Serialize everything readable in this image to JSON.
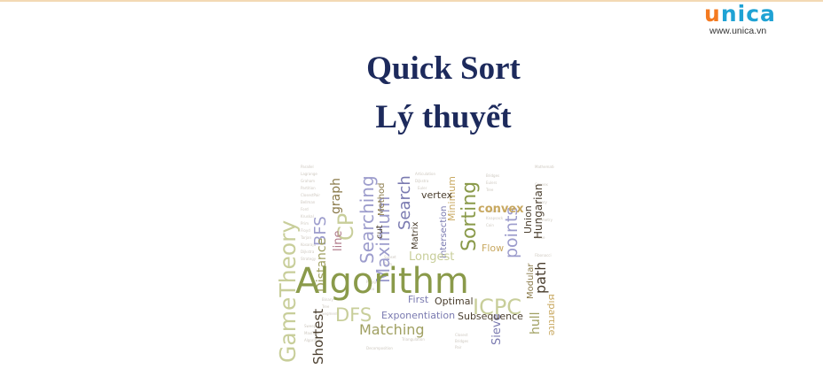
{
  "logo": {
    "letters": [
      "u",
      "n",
      "i",
      "c",
      "a"
    ],
    "letter_colors": [
      "#f47a20",
      "#1fa2d4",
      "#1fa2d4",
      "#1fa2d4",
      "#1fa2d4"
    ],
    "url": "www.unica.vn"
  },
  "slide": {
    "title_line1": "Quick Sort",
    "title_line2": "Lý thuyết",
    "title_color": "#1d2a5c"
  },
  "word_cloud": {
    "words": [
      "Algorithm",
      "GameTheory",
      "Searching",
      "Sorting",
      "Maximum",
      "ICPC",
      "DFS",
      "Matching",
      "Shortest",
      "BFS",
      "Search",
      "points",
      "Longest",
      "Exponentiation",
      "Subsequence",
      "convex",
      "Hungarian",
      "path",
      "Bipartite",
      "graph",
      "line",
      "Method",
      "Matrix",
      "vertex",
      "Flow",
      "Optimal",
      "First",
      "Distance",
      "CP",
      "hull",
      "Sieve",
      "Minimum",
      "Intersection",
      "Union",
      "Modular",
      "cut"
    ],
    "palette": [
      "#8a9a4a",
      "#c8ce9a",
      "#9c9ccc",
      "#b07a8a",
      "#c8a860",
      "#4a3e2e",
      "#7a7ab0",
      "#a0a062"
    ]
  }
}
